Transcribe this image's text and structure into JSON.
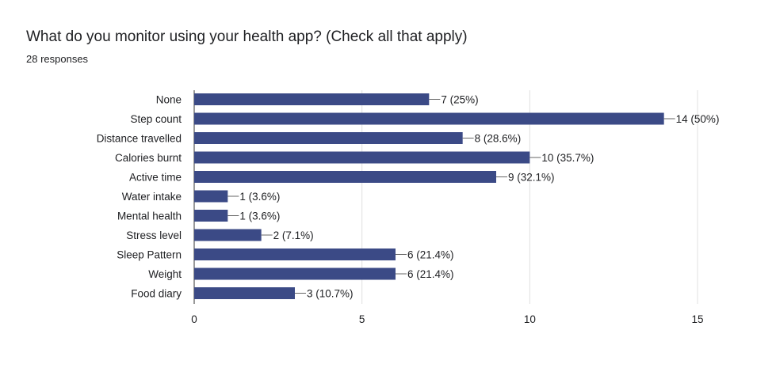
{
  "header": {
    "title": "What do you monitor using your health app? (Check all that apply)",
    "subtitle": "28 responses"
  },
  "colors": {
    "bar": "#3b4a86",
    "grid": "#e0e0e0",
    "axis": "#333333",
    "leader": "#666666"
  },
  "chart_data": {
    "type": "bar",
    "orientation": "horizontal",
    "title": "What do you monitor using your health app? (Check all that apply)",
    "subtitle": "28 responses",
    "categories": [
      "None",
      "Step count",
      "Distance travelled",
      "Calories burnt",
      "Active time",
      "Water intake",
      "Mental health",
      "Stress level",
      "Sleep Pattern",
      "Weight",
      "Food diary"
    ],
    "values": [
      7,
      14,
      8,
      10,
      9,
      1,
      1,
      2,
      6,
      6,
      3
    ],
    "data_labels": [
      "7 (25%)",
      "14 (50%)",
      "8 (28.6%)",
      "10 (35.7%)",
      "9 (32.1%)",
      "1 (3.6%)",
      "1 (3.6%)",
      "2 (7.1%)",
      "6 (21.4%)",
      "6 (21.4%)",
      "3 (10.7%)"
    ],
    "xlim": [
      0,
      15
    ],
    "xticks": [
      0,
      5,
      10,
      15
    ],
    "xlabel": "",
    "ylabel": "",
    "grid": true,
    "legend": "none"
  }
}
